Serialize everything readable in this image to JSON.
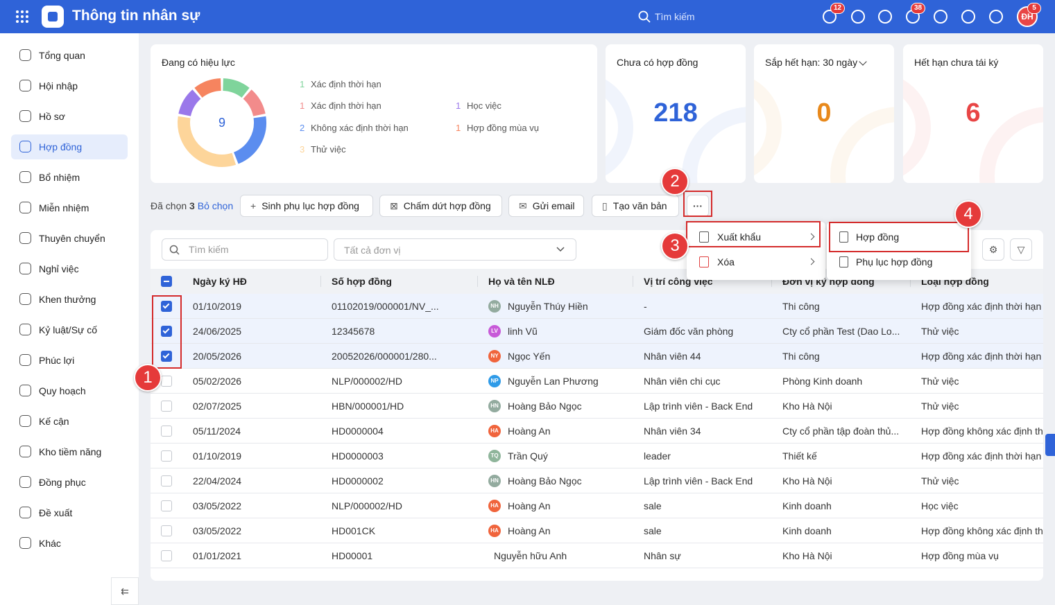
{
  "header": {
    "title": "Thông tin nhân sự",
    "search": "Tìm kiếm",
    "badges": [
      12,
      38,
      5
    ],
    "avatar": "ĐH"
  },
  "sidebar": {
    "items": [
      "Tổng quan",
      "Hội nhập",
      "Hồ sơ",
      "Hợp đồng",
      "Bổ nhiệm",
      "Miễn nhiệm",
      "Thuyên chuyển",
      "Nghỉ việc",
      "Khen thưởng",
      "Kỷ luật/Sự cố",
      "Phúc lợi",
      "Quy hoạch",
      "Kế cận",
      "Kho tiềm năng",
      "Đồng phục",
      "Đề xuất",
      "Khác"
    ],
    "active": 3
  },
  "summary": {
    "title": "Đang có hiệu lực",
    "total": 9,
    "legend": [
      {
        "count": 1,
        "label": "Xác định thời hạn",
        "color": "#7fd49b"
      },
      {
        "count": 1,
        "label": "Xác định thời hạn",
        "color": "#f28b8b"
      },
      {
        "count": 2,
        "label": "Không xác định thời hạn",
        "color": "#5b8def"
      },
      {
        "count": 3,
        "label": "Thử việc",
        "color": "#fdd59a"
      },
      {
        "count": 1,
        "label": "Học việc",
        "color": "#9a78ea"
      },
      {
        "count": 1,
        "label": "Hợp đồng mùa vụ",
        "color": "#f6845f"
      }
    ]
  },
  "stats": [
    {
      "title": "Chưa có hợp đồng",
      "value": 218,
      "color": "#2f63d8"
    },
    {
      "title": "Sắp hết hạn: 30 ngày",
      "value": 0,
      "color": "#e8891c"
    },
    {
      "title": "Hết hạn chưa tái ký",
      "value": 6,
      "color": "#e84545"
    }
  ],
  "toolbar": {
    "selected_label": "Đã chọn",
    "selected_count": 3,
    "deselect": "Bỏ chọn",
    "buttons": [
      "Sinh phụ lục hợp đồng",
      "Chấm dứt hợp đồng",
      "Gửi email",
      "Tạo văn bản"
    ]
  },
  "filters": {
    "search": "Tìm kiếm",
    "unit": "Tất cả đơn vị"
  },
  "menu": {
    "items": [
      "Xuất khẩu",
      "Xóa"
    ],
    "submenu": [
      "Hợp đồng",
      "Phụ lục hợp đồng"
    ]
  },
  "annotations": [
    1,
    2,
    3,
    4
  ],
  "table": {
    "columns": [
      "Ngày ký HĐ",
      "Số hợp đồng",
      "Họ và tên NLĐ",
      "Vị trí công việc",
      "Đơn vị ký hợp đồng",
      "Loại hợp đồng"
    ],
    "rows": [
      {
        "checked": true,
        "date": "01/10/2019",
        "number": "01102019/000001/NV_...",
        "initials": "NH",
        "avatar_color": "#93ab9f",
        "name": "Nguyễn Thúy Hiền",
        "position": "-",
        "unit": "Thi công",
        "type": "Hợp đồng xác định thời hạn"
      },
      {
        "checked": true,
        "date": "24/06/2025",
        "number": "12345678",
        "initials": "LV",
        "avatar_color": "#c75ad8",
        "name": "linh Vũ",
        "position": "Giám đốc văn phòng",
        "unit": "Cty cổ phần Test (Dao Lo...",
        "type": "Thử việc"
      },
      {
        "checked": true,
        "date": "20/05/2026",
        "number": "20052026/000001/280...",
        "initials": "NY",
        "avatar_color": "#f0643c",
        "name": "Ngọc Yến",
        "position": "Nhân viên 44",
        "unit": "Thi công",
        "type": "Hợp đồng xác định thời hạn"
      },
      {
        "checked": false,
        "date": "05/02/2026",
        "number": "NLP/000002/HD",
        "initials": "NP",
        "avatar_color": "#2f9be8",
        "name": "Nguyễn Lan Phương",
        "position": "Nhân viên chi cục",
        "unit": "Phòng Kinh doanh",
        "type": "Thử việc"
      },
      {
        "checked": false,
        "date": "02/07/2025",
        "number": "HBN/000001/HD",
        "initials": "HN",
        "avatar_color": "#93ab9f",
        "name": "Hoàng Bảo Ngọc",
        "position": "Lập trình viên - Back End",
        "unit": "Kho Hà Nội",
        "type": "Thử việc"
      },
      {
        "checked": false,
        "date": "05/11/2024",
        "number": "HD0000004",
        "initials": "HA",
        "avatar_color": "#f0643c",
        "name": "Hoàng An",
        "position": "Nhân viên 34",
        "unit": "Cty cổ phần tập đoàn thủ...",
        "type": "Hợp đồng không xác định thời hạn"
      },
      {
        "checked": false,
        "date": "01/10/2019",
        "number": "HD0000003",
        "initials": "TQ",
        "avatar_color": "#8fb59b",
        "name": "Trần Quý",
        "position": "leader",
        "unit": "Thiết kế",
        "type": "Hợp đồng xác định thời hạn"
      },
      {
        "checked": false,
        "date": "22/04/2024",
        "number": "HD0000002",
        "initials": "HN",
        "avatar_color": "#93ab9f",
        "name": "Hoàng Bảo Ngọc",
        "position": "Lập trình viên - Back End",
        "unit": "Kho Hà Nội",
        "type": "Thử việc"
      },
      {
        "checked": false,
        "date": "03/05/2022",
        "number": "NLP/000002/HD",
        "initials": "HA",
        "avatar_color": "#f0643c",
        "name": "Hoàng An",
        "position": "sale",
        "unit": "Kinh doanh",
        "type": "Học việc"
      },
      {
        "checked": false,
        "date": "03/05/2022",
        "number": "HD001CK",
        "initials": "HA",
        "avatar_color": "#f0643c",
        "name": "Hoàng An",
        "position": "sale",
        "unit": "Kinh doanh",
        "type": "Hợp đồng không xác định thời hạn"
      },
      {
        "checked": false,
        "date": "01/01/2021",
        "number": "HD00001",
        "initials": null,
        "avatar_color": null,
        "name": "Nguyễn hữu Anh",
        "position": "Nhân sự",
        "unit": "Kho Hà Nội",
        "type": "Hợp đồng mùa vụ"
      }
    ]
  }
}
